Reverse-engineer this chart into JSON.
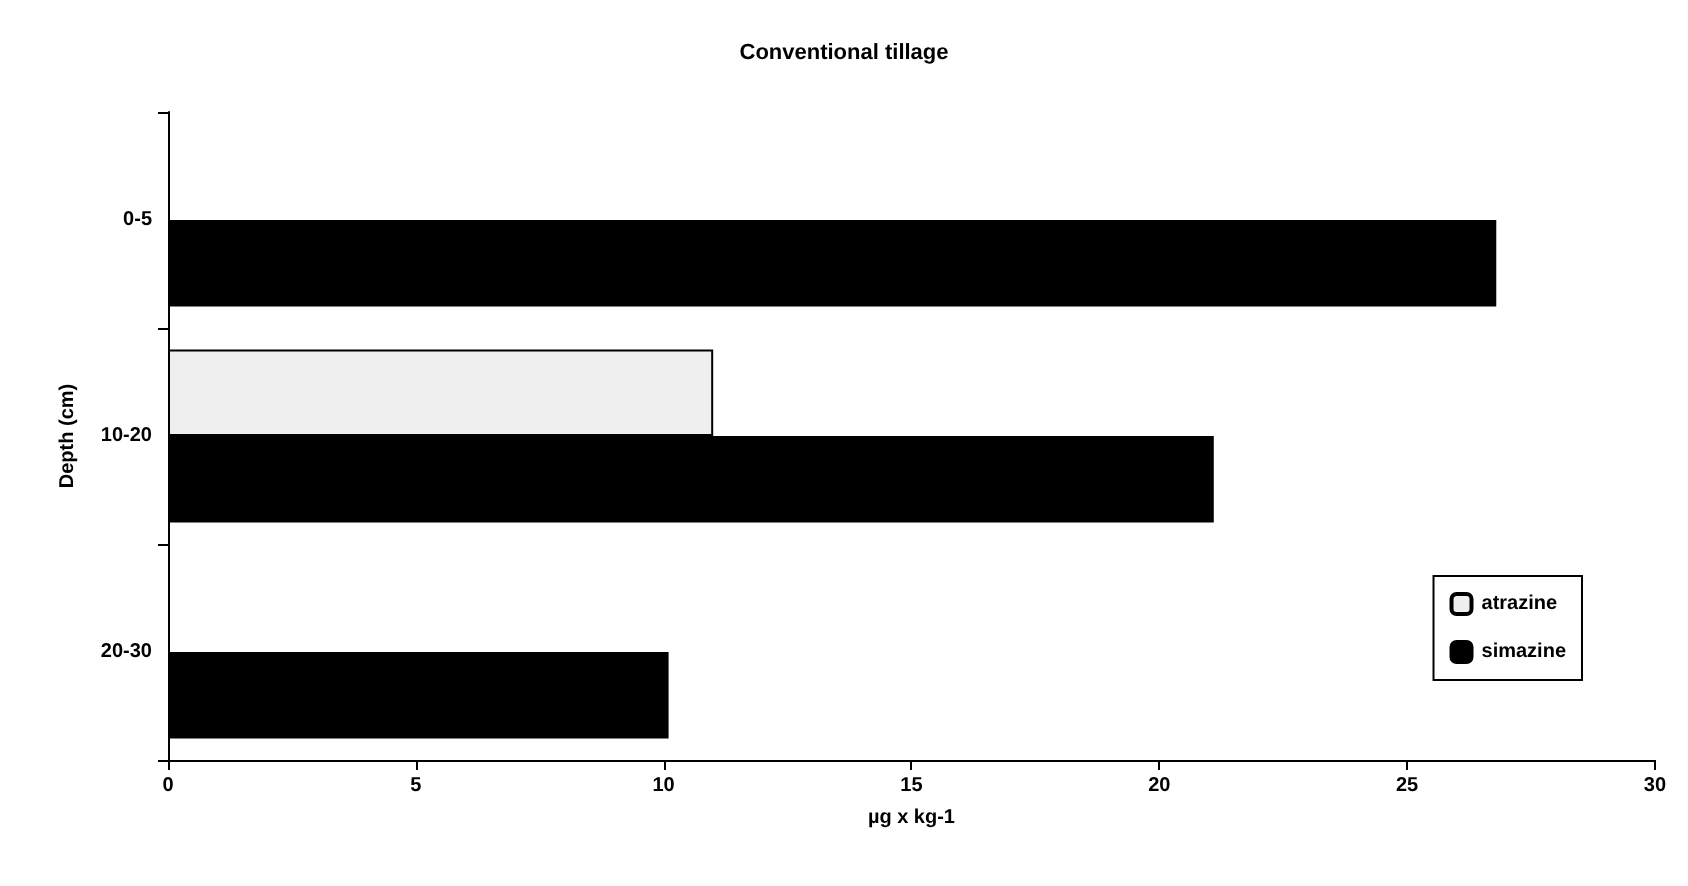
{
  "chart_data": {
    "type": "bar",
    "orientation": "horizontal",
    "title": "Conventional tillage",
    "xlabel": "µg x kg-1",
    "ylabel": "Depth (cm)",
    "categories": [
      "0-5",
      "10-20",
      "20-30"
    ],
    "series": [
      {
        "name": "atrazine",
        "color": "#efefef",
        "values": [
          null,
          11,
          null
        ]
      },
      {
        "name": "simazine",
        "color": "#000000",
        "values": [
          26.8,
          21.1,
          10.1
        ]
      }
    ],
    "xlim": [
      0,
      30
    ],
    "xticks": [
      0,
      5,
      10,
      15,
      20,
      25,
      30
    ],
    "grid": false,
    "legend": "bottom right"
  }
}
